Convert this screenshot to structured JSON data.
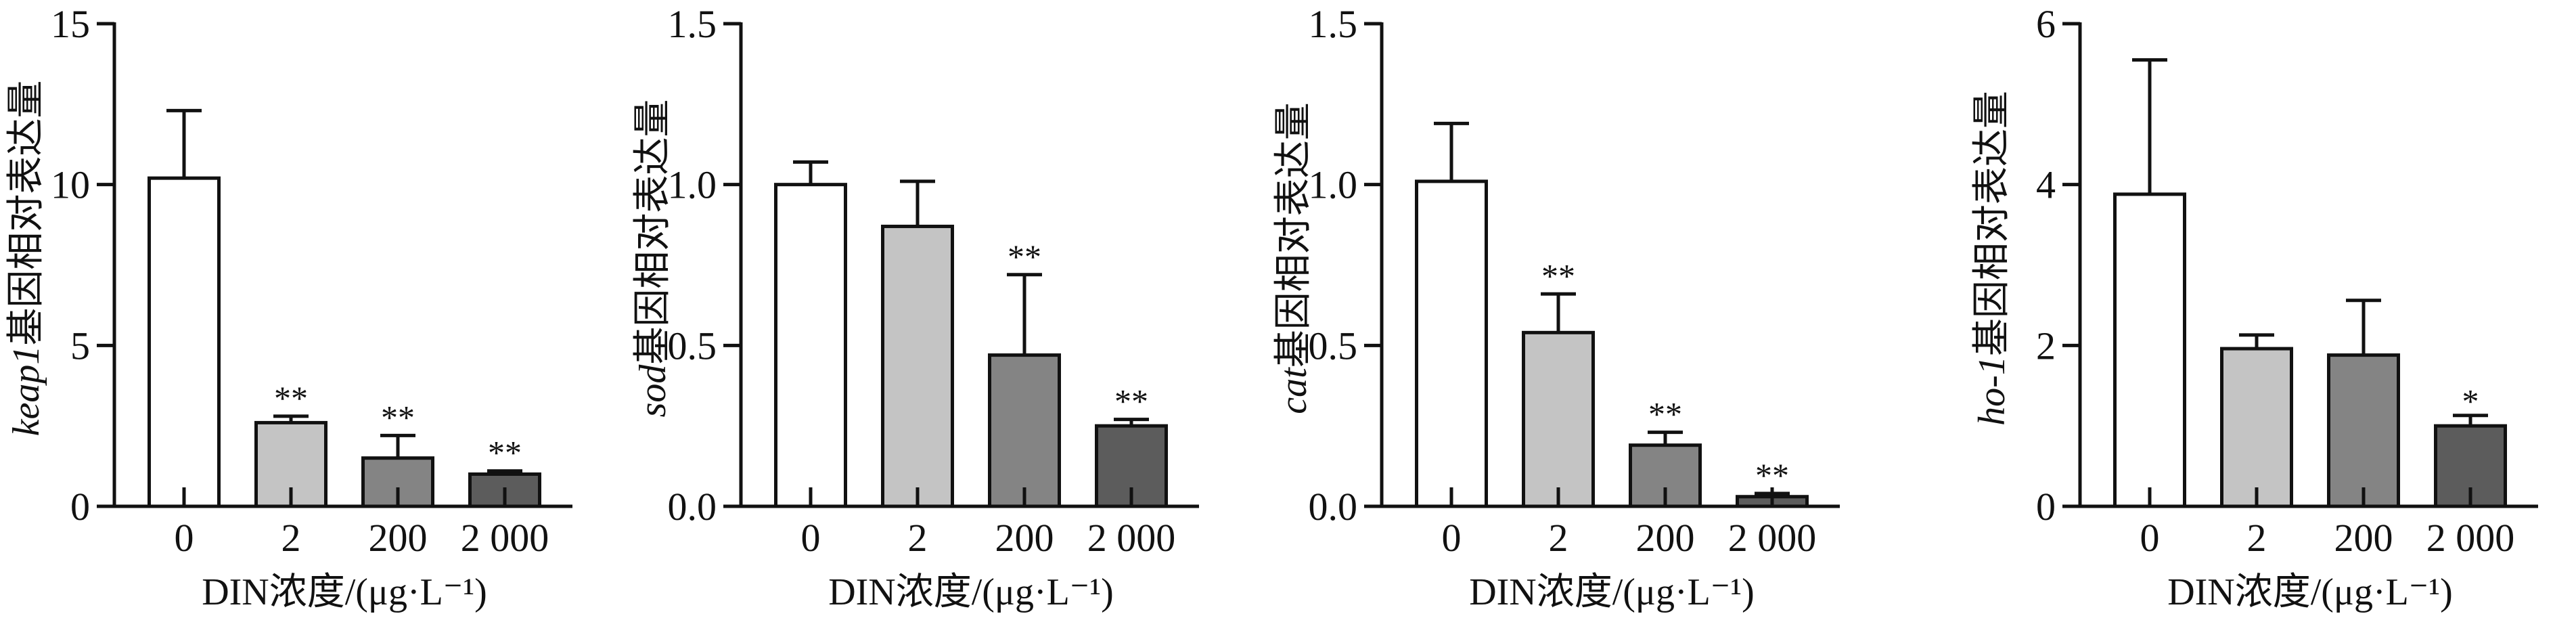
{
  "chart_data": [
    {
      "type": "bar",
      "ylabel_italic": "keap1",
      "ylabel_suffix": "基因相对表达量",
      "xlabel": "DIN浓度/(μg·L⁻¹)",
      "categories": [
        "0",
        "2",
        "200",
        "2 000"
      ],
      "values": [
        10.2,
        2.6,
        1.5,
        1.0
      ],
      "errors": [
        2.1,
        0.2,
        0.7,
        0.1
      ],
      "significance": [
        "",
        "**",
        "**",
        "**"
      ],
      "ylim": [
        0,
        15
      ],
      "yticks": [
        "0",
        "5",
        "10",
        "15"
      ],
      "ytick_values": [
        0,
        5,
        10,
        15
      ]
    },
    {
      "type": "bar",
      "ylabel_italic": "sod",
      "ylabel_suffix": "基因相对表达量",
      "xlabel": "DIN浓度/(μg·L⁻¹)",
      "categories": [
        "0",
        "2",
        "200",
        "2 000"
      ],
      "values": [
        1.0,
        0.87,
        0.47,
        0.25
      ],
      "errors": [
        0.07,
        0.14,
        0.25,
        0.02
      ],
      "significance": [
        "",
        "",
        "**",
        "**"
      ],
      "ylim": [
        0,
        1.5
      ],
      "yticks": [
        "0.0",
        "0.5",
        "1.0",
        "1.5"
      ],
      "ytick_values": [
        0,
        0.5,
        1.0,
        1.5
      ]
    },
    {
      "type": "bar",
      "ylabel_italic": "cat",
      "ylabel_suffix": "基因相对表达量",
      "xlabel": "DIN浓度/(μg·L⁻¹)",
      "categories": [
        "0",
        "2",
        "200",
        "2 000"
      ],
      "values": [
        1.01,
        0.54,
        0.19,
        0.03
      ],
      "errors": [
        0.18,
        0.12,
        0.04,
        0.01
      ],
      "significance": [
        "",
        "**",
        "**",
        "**"
      ],
      "ylim": [
        0,
        1.5
      ],
      "yticks": [
        "0.0",
        "0.5",
        "1.0",
        "1.5"
      ],
      "ytick_values": [
        0,
        0.5,
        1.0,
        1.5
      ]
    },
    {
      "type": "bar",
      "ylabel_italic": "ho-1",
      "ylabel_suffix": "基因相对表达量",
      "xlabel": "DIN浓度/(μg·L⁻¹)",
      "categories": [
        "0",
        "2",
        "200",
        "2 000"
      ],
      "values": [
        3.88,
        1.96,
        1.88,
        1.0
      ],
      "errors": [
        1.67,
        0.17,
        0.68,
        0.13
      ],
      "significance": [
        "",
        "",
        "",
        "*"
      ],
      "ylim": [
        0,
        6
      ],
      "yticks": [
        "0",
        "2",
        "4",
        "6"
      ],
      "ytick_values": [
        0,
        2,
        4,
        6
      ]
    }
  ],
  "colors": {
    "bar_fills": [
      "#ffffff",
      "#c4c4c4",
      "#848484",
      "#5c5c5c"
    ],
    "stroke": "#111111"
  }
}
